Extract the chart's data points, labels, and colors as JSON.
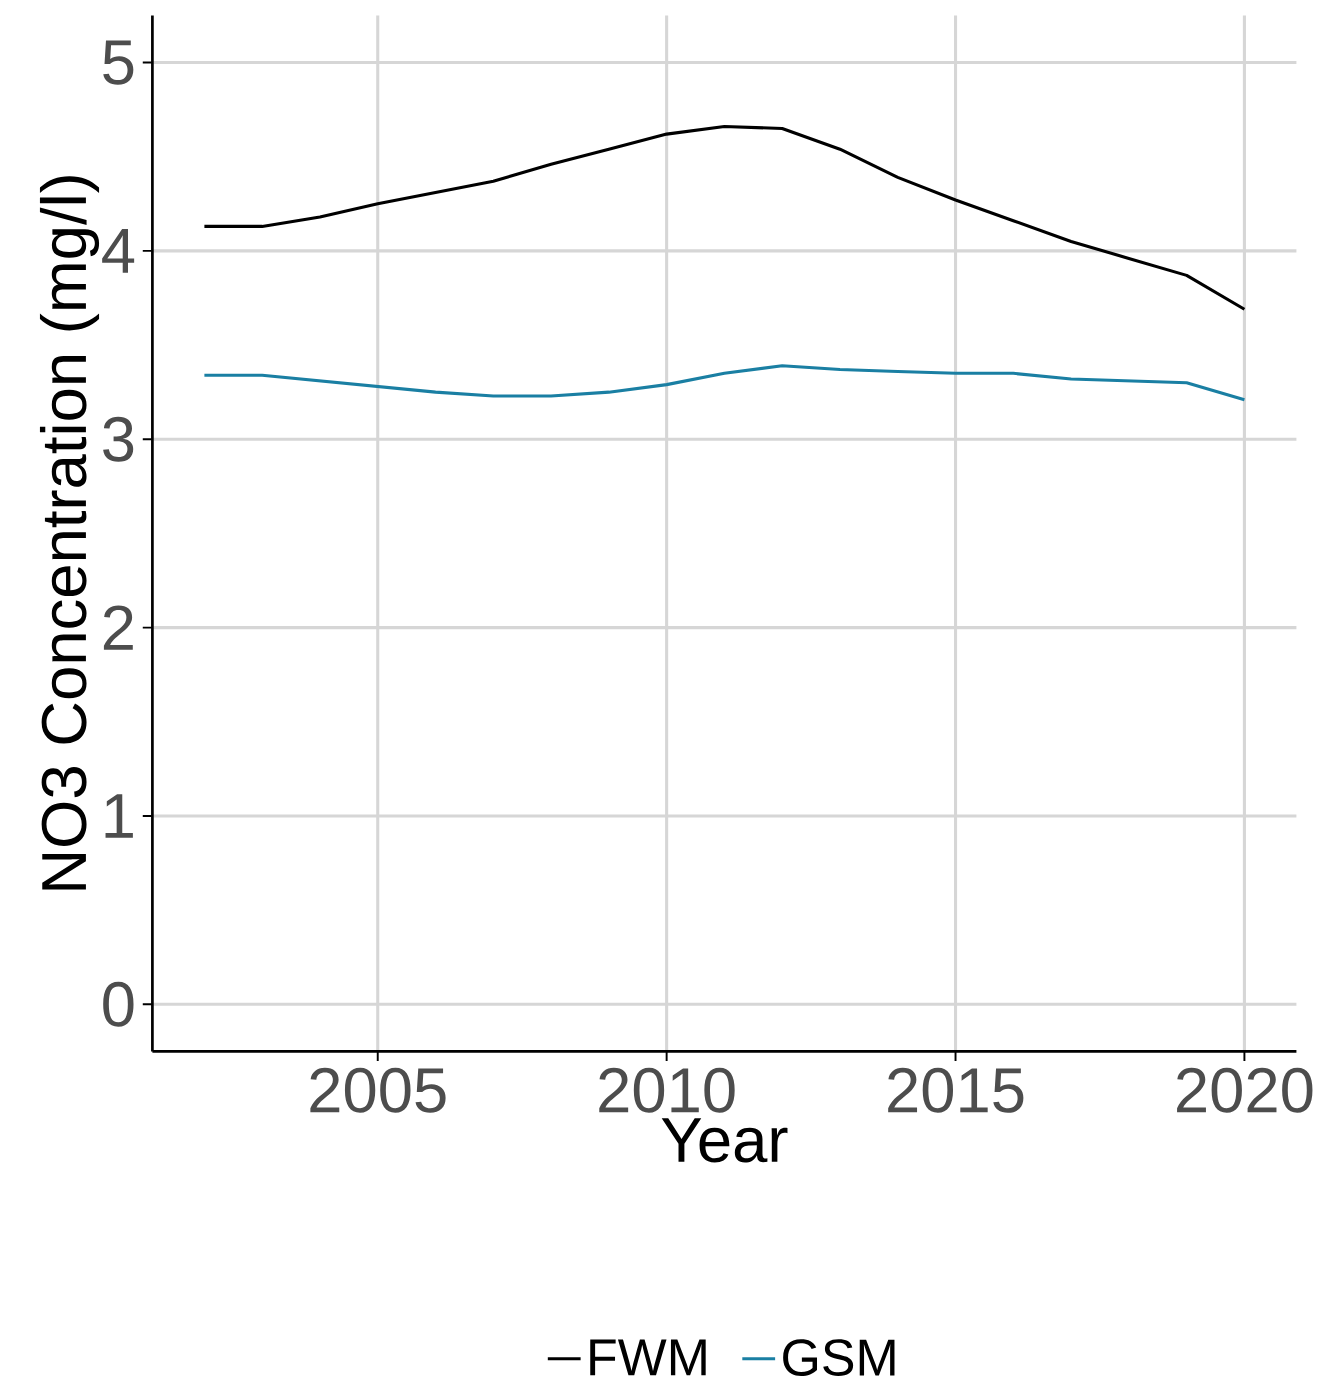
{
  "chart_data": {
    "type": "line",
    "xlabel": "Year",
    "ylabel": "NO3 Concentration (mg/l)",
    "x": [
      2002,
      2003,
      2004,
      2005,
      2006,
      2007,
      2008,
      2009,
      2010,
      2011,
      2012,
      2013,
      2014,
      2015,
      2016,
      2017,
      2018,
      2019,
      2020
    ],
    "series": [
      {
        "name": "FWM",
        "color": "#000000",
        "values": [
          4.13,
          4.13,
          4.18,
          4.25,
          4.31,
          4.37,
          4.46,
          4.54,
          4.62,
          4.66,
          4.65,
          4.54,
          4.39,
          4.27,
          4.16,
          4.05,
          3.96,
          3.87,
          3.69
        ]
      },
      {
        "name": "GSM",
        "color": "#1a7fa3",
        "values": [
          3.34,
          3.34,
          3.31,
          3.28,
          3.25,
          3.23,
          3.23,
          3.25,
          3.29,
          3.35,
          3.39,
          3.37,
          3.36,
          3.35,
          3.35,
          3.32,
          3.31,
          3.3,
          3.21
        ]
      }
    ],
    "xlim": [
      2001.1,
      2020.9
    ],
    "ylim": [
      -0.25,
      5.25
    ],
    "xticks": [
      2005,
      2010,
      2015,
      2020
    ],
    "yticks": [
      0,
      1,
      2,
      3,
      4,
      5
    ],
    "grid": true,
    "legend": "bottom"
  }
}
